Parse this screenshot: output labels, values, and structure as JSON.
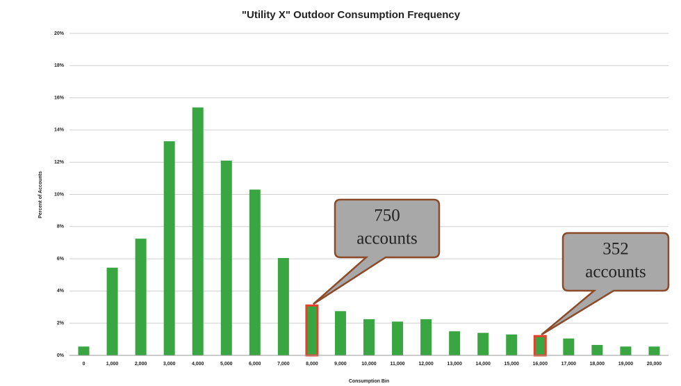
{
  "chart_data": {
    "type": "bar",
    "title": "\"Utility X\" Outdoor Consumption Frequency",
    "x_label": "Consumption Bin",
    "y_label": "Percent of Accounts",
    "categories": [
      "0",
      "1,000",
      "2,000",
      "3,000",
      "4,000",
      "5,000",
      "6,000",
      "7,000",
      "8,000",
      "9,000",
      "10,000",
      "11,000",
      "12,000",
      "13,000",
      "14,000",
      "15,000",
      "16,000",
      "17,000",
      "18,000",
      "19,000",
      "20,000"
    ],
    "values": [
      0.55,
      5.45,
      7.25,
      13.3,
      15.4,
      12.1,
      10.3,
      6.05,
      3.1,
      2.75,
      2.25,
      2.1,
      2.25,
      1.5,
      1.4,
      1.3,
      1.2,
      1.05,
      0.65,
      0.55,
      0.55
    ],
    "color": "#3aa642",
    "highlight_color": "#e8412b",
    "highlight": [
      "8,000",
      "16,000"
    ],
    "ylim": [
      0,
      20
    ],
    "yticks": [
      {
        "value": 0,
        "label": "0%"
      },
      {
        "value": 2,
        "label": "2%"
      },
      {
        "value": 4,
        "label": "4%"
      },
      {
        "value": 6,
        "label": "6%"
      },
      {
        "value": 8,
        "label": "8%"
      },
      {
        "value": 10,
        "label": "10%"
      },
      {
        "value": 12,
        "label": "12%"
      },
      {
        "value": 14,
        "label": "14%"
      },
      {
        "value": 16,
        "label": "16%"
      },
      {
        "value": 18,
        "label": "18%"
      },
      {
        "value": 20,
        "label": "20%"
      }
    ],
    "grid": true,
    "annotations": [
      {
        "lines": [
          "750",
          "accounts"
        ],
        "target": "8,000"
      },
      {
        "lines": [
          "352",
          "accounts"
        ],
        "target": "16,000"
      }
    ]
  }
}
